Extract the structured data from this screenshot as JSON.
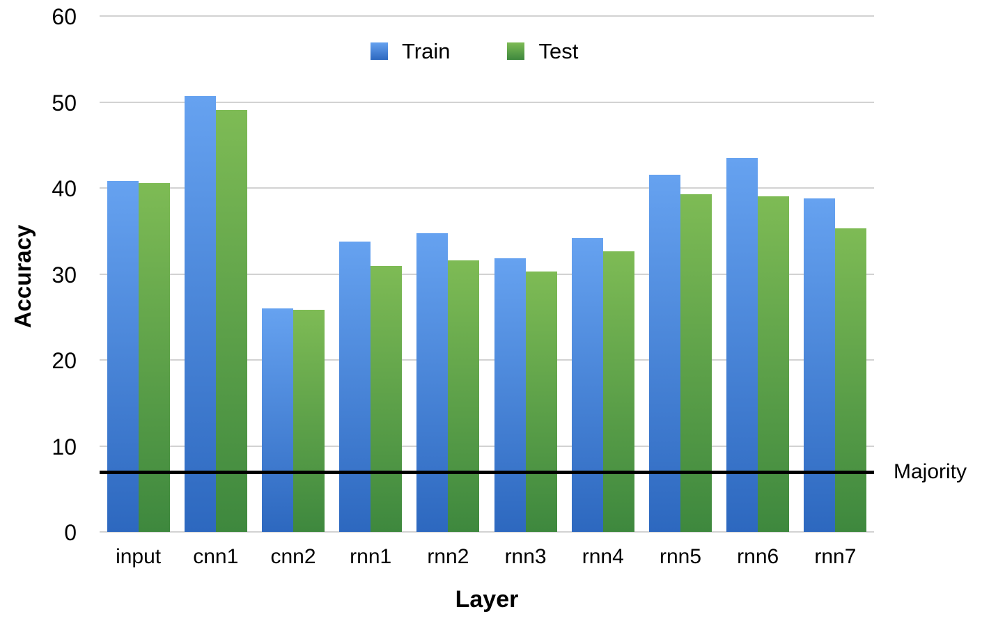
{
  "chart_data": {
    "type": "bar",
    "title": "",
    "xlabel": "Layer",
    "ylabel": "Accuracy",
    "categories": [
      "input",
      "cnn1",
      "cnn2",
      "rnn1",
      "rnn2",
      "rnn3",
      "rnn4",
      "rnn5",
      "rnn6",
      "rnn7"
    ],
    "series": [
      {
        "name": "Train",
        "color_top": "#66A2F0",
        "color_bottom": "#2D68BF",
        "values": [
          40.8,
          50.7,
          26.0,
          33.8,
          34.7,
          31.8,
          34.2,
          41.5,
          43.5,
          38.8
        ]
      },
      {
        "name": "Test",
        "color_top": "#7EBB55",
        "color_bottom": "#3E883E",
        "values": [
          40.6,
          49.1,
          25.8,
          30.9,
          31.6,
          30.3,
          32.6,
          39.3,
          39.0,
          35.3
        ]
      }
    ],
    "ylim": [
      0,
      60
    ],
    "y_ticks": [
      0,
      10,
      20,
      30,
      40,
      50,
      60
    ],
    "reference_line": {
      "label": "Majority",
      "value": 7,
      "color": "#000000"
    },
    "grid": true,
    "legend_position": "top",
    "gridline_color": "#d2d2d2",
    "background_color": "#ffffff"
  }
}
